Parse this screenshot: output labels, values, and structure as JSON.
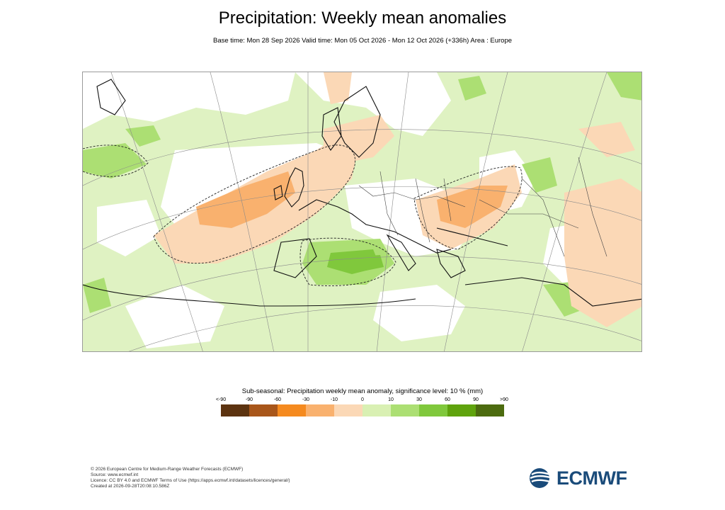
{
  "header": {
    "title": "Precipitation: Weekly mean anomalies",
    "subtitle": "Base time: Mon 28 Sep 2026 Valid time: Mon 05 Oct 2026 - Mon 12 Oct 2026 (+336h) Area : Europe"
  },
  "legend": {
    "title": "Sub-seasonal: Precipitation weekly mean anomaly, significance level: 10 % (mm)",
    "ticks": [
      "<-90",
      "-90",
      "-60",
      "-30",
      "-10",
      "0",
      "10",
      "30",
      "60",
      "90",
      ">90"
    ],
    "colors": [
      "#5c3310",
      "#a8561a",
      "#f58a1f",
      "#f9b16e",
      "#fbd8b6",
      "#d9f0b3",
      "#acdf73",
      "#80c83c",
      "#5fa30d",
      "#4c6b0f"
    ]
  },
  "footer": {
    "line1": "© 2026 European Centre for Medium-Range Weather Forecasts (ECMWF)",
    "line2": "Source: www.ecmwf.int",
    "line3": "Licence: CC BY 4.0 and ECMWF Terms of Use (https://apps.ecmwf.int/datasets/licences/general/)",
    "line4": "Created at 2026-09-28T20:08:10.586Z"
  },
  "logo": {
    "text": "ECMWF",
    "color": "#1a4b7a"
  }
}
